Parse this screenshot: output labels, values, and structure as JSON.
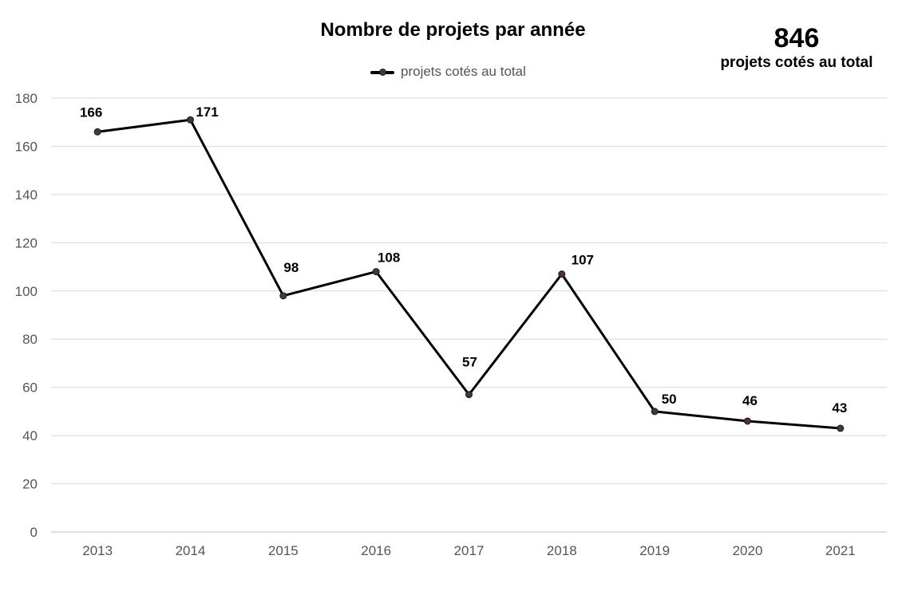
{
  "kpi": {
    "value": "846",
    "label": "projets cotés au total"
  },
  "chart_data": {
    "type": "line",
    "title": "Nombre de projets par année",
    "xlabel": "",
    "ylabel": "",
    "categories": [
      "2013",
      "2014",
      "2015",
      "2016",
      "2017",
      "2018",
      "2019",
      "2020",
      "2021"
    ],
    "series": [
      {
        "name": "projets cotés au total",
        "values": [
          166,
          171,
          98,
          108,
          57,
          107,
          50,
          46,
          43
        ],
        "color": "#000000",
        "marker_color": "#4a3245"
      }
    ],
    "ylim": [
      0,
      180
    ],
    "yticks": [
      "0",
      "20",
      "40",
      "60",
      "80",
      "100",
      "120",
      "140",
      "160",
      "180"
    ],
    "data_labels": [
      "166",
      "171",
      "98",
      "108",
      "57",
      "107",
      "50",
      "46",
      "43"
    ],
    "grid": true,
    "gridline_color": "#d9d9d9",
    "legend_position": "top"
  }
}
